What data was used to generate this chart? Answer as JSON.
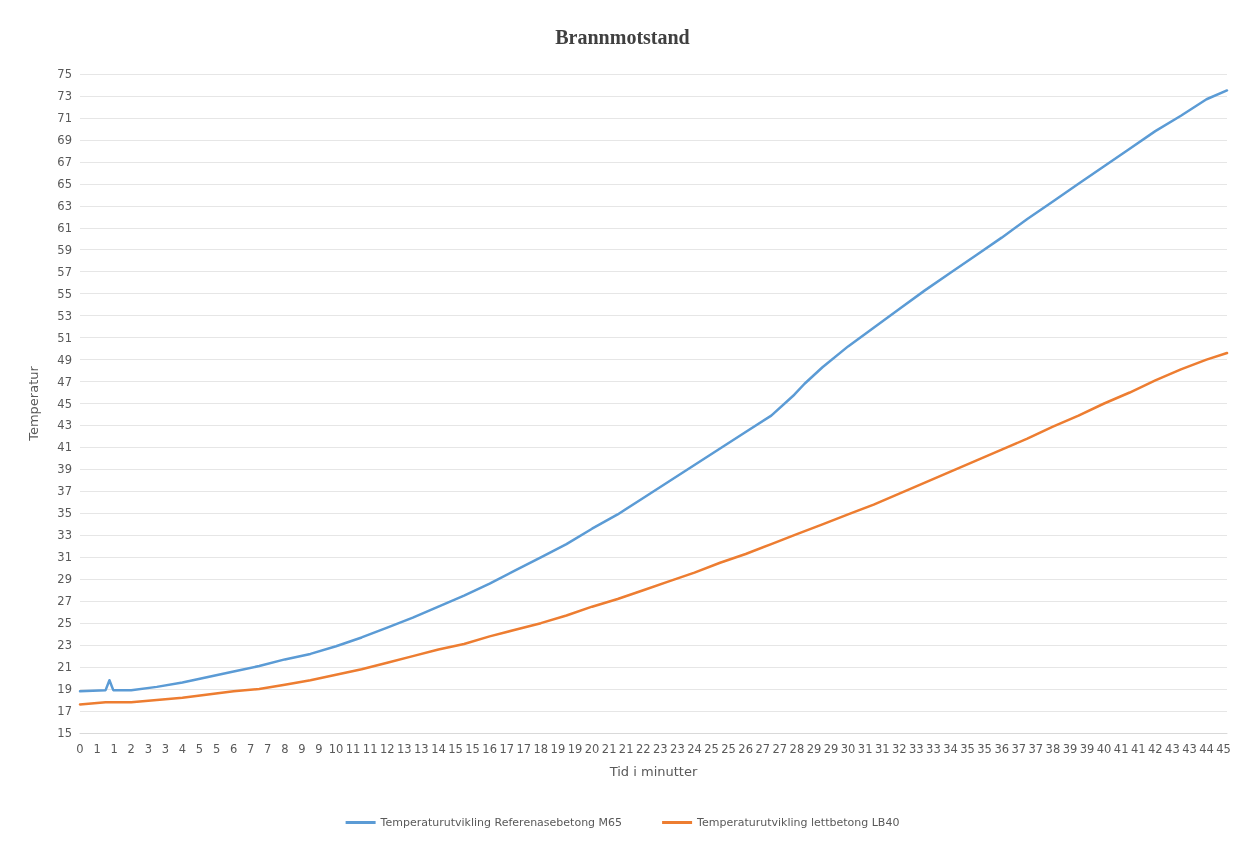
{
  "chart_data": {
    "type": "line",
    "title": "Brannmotstand",
    "xlabel": "Tid i minutter",
    "ylabel": "Temperatur",
    "xlim": [
      0,
      44.8
    ],
    "ylim": [
      15,
      75
    ],
    "xticks": [
      0,
      {
        "value": 0.667,
        "label": "1"
      },
      {
        "value": 1.333,
        "label": "1"
      },
      2,
      {
        "value": 2.667,
        "label": "3"
      },
      {
        "value": 3.333,
        "label": "3"
      },
      4,
      {
        "value": 4.667,
        "label": "5"
      },
      {
        "value": 5.333,
        "label": "5"
      },
      6,
      {
        "value": 6.667,
        "label": "7"
      },
      {
        "value": 7.333,
        "label": "7"
      },
      8,
      {
        "value": 8.667,
        "label": "9"
      },
      {
        "value": 9.333,
        "label": "9"
      },
      10,
      {
        "value": 10.667,
        "label": "11"
      },
      {
        "value": 11.333,
        "label": "11"
      },
      12,
      {
        "value": 12.667,
        "label": "13"
      },
      {
        "value": 13.333,
        "label": "13"
      },
      14,
      {
        "value": 14.667,
        "label": "15"
      },
      {
        "value": 15.333,
        "label": "15"
      },
      16,
      {
        "value": 16.667,
        "label": "17"
      },
      {
        "value": 17.333,
        "label": "17"
      },
      18,
      {
        "value": 18.667,
        "label": "19"
      },
      {
        "value": 19.333,
        "label": "19"
      },
      20,
      {
        "value": 20.667,
        "label": "21"
      },
      {
        "value": 21.333,
        "label": "21"
      },
      22,
      {
        "value": 22.667,
        "label": "23"
      },
      {
        "value": 23.333,
        "label": "23"
      },
      24,
      {
        "value": 24.667,
        "label": "25"
      },
      {
        "value": 25.333,
        "label": "25"
      },
      26,
      {
        "value": 26.667,
        "label": "27"
      },
      {
        "value": 27.333,
        "label": "27"
      },
      28,
      {
        "value": 28.667,
        "label": "29"
      },
      {
        "value": 29.333,
        "label": "29"
      },
      30,
      {
        "value": 30.667,
        "label": "31"
      },
      {
        "value": 31.333,
        "label": "31"
      },
      32,
      {
        "value": 32.667,
        "label": "33"
      },
      {
        "value": 33.333,
        "label": "33"
      },
      34,
      {
        "value": 34.667,
        "label": "35"
      },
      {
        "value": 35.333,
        "label": "35"
      },
      36,
      {
        "value": 36.667,
        "label": "37"
      },
      {
        "value": 37.333,
        "label": "37"
      },
      38,
      {
        "value": 38.667,
        "label": "39"
      },
      {
        "value": 39.333,
        "label": "39"
      },
      40,
      {
        "value": 40.667,
        "label": "41"
      },
      {
        "value": 41.333,
        "label": "41"
      },
      42,
      {
        "value": 42.667,
        "label": "43"
      },
      {
        "value": 43.333,
        "label": "43"
      },
      44,
      {
        "value": 44.667,
        "label": "45"
      }
    ],
    "yticks": [
      15,
      17,
      19,
      21,
      23,
      25,
      27,
      29,
      31,
      33,
      35,
      37,
      39,
      41,
      43,
      45,
      47,
      49,
      51,
      53,
      55,
      57,
      59,
      61,
      63,
      65,
      67,
      69,
      71,
      73,
      75
    ],
    "grid": "y",
    "legend": "bottom",
    "marker": "none",
    "line_style": "solid",
    "series": [
      {
        "name": "Temperaturutvikling Referenasebetong M65",
        "color": "#5b9bd5",
        "x": [
          0,
          1,
          1.15,
          1.3,
          2,
          3,
          4,
          5,
          6,
          7,
          8,
          9,
          10,
          11,
          12,
          13,
          14,
          15,
          16,
          17,
          18,
          19,
          20,
          21,
          22,
          23,
          24,
          25,
          26,
          27,
          27.9,
          28.3,
          29,
          30,
          31,
          32,
          33,
          34,
          35,
          36,
          37,
          38,
          39,
          40,
          41,
          42,
          43,
          44,
          44.8
        ],
        "values": [
          18.8,
          18.9,
          19.8,
          18.9,
          18.9,
          19.2,
          19.6,
          20.1,
          20.6,
          21.1,
          21.7,
          22.2,
          22.9,
          23.7,
          24.6,
          25.5,
          26.5,
          27.5,
          28.6,
          29.8,
          31.0,
          32.2,
          33.6,
          34.9,
          36.4,
          37.9,
          39.4,
          40.9,
          42.4,
          43.9,
          45.8,
          46.8,
          48.3,
          50.2,
          51.9,
          53.6,
          55.3,
          56.9,
          58.5,
          60.1,
          61.8,
          63.4,
          65.0,
          66.6,
          68.2,
          69.8,
          71.2,
          72.7,
          73.5
        ]
      },
      {
        "name": "Temperaturutvikling lettbetong LB40",
        "color": "#ed7d31",
        "x": [
          0,
          1,
          2,
          3,
          4,
          5,
          6,
          7,
          8,
          9,
          10,
          11,
          12,
          13,
          14,
          15,
          16,
          17,
          18,
          19,
          20,
          21,
          22,
          23,
          24,
          25,
          26,
          27,
          28,
          29,
          30,
          31,
          32,
          33,
          34,
          35,
          36,
          37,
          38,
          39,
          40,
          41,
          42,
          43,
          44,
          44.8
        ],
        "values": [
          17.6,
          17.8,
          17.8,
          18.0,
          18.2,
          18.5,
          18.8,
          19.0,
          19.4,
          19.8,
          20.3,
          20.8,
          21.4,
          22.0,
          22.6,
          23.1,
          23.8,
          24.4,
          25.0,
          25.7,
          26.5,
          27.2,
          28.0,
          28.8,
          29.6,
          30.5,
          31.3,
          32.2,
          33.1,
          34.0,
          34.9,
          35.8,
          36.8,
          37.8,
          38.8,
          39.8,
          40.8,
          41.8,
          42.9,
          43.9,
          45.0,
          46.0,
          47.1,
          48.1,
          49.0,
          49.6
        ]
      }
    ]
  }
}
